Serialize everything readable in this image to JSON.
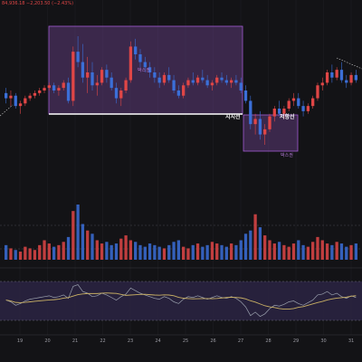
{
  "header": {
    "price_readout": "84,936.18 −2,203.50 (−2.43%)"
  },
  "annotations": {
    "support_label": "지지선",
    "resistance_label": "저항선",
    "box_top_label": "박스권",
    "box_bottom_label": "박스권"
  },
  "colors": {
    "background": "#131316",
    "up": "#e04646",
    "down": "#3b6fd8",
    "box_fill": "#5c3a78",
    "box_stroke": "#a35bd3",
    "rsi_band": "#2a2340",
    "rsi_line": "#9aa0ad",
    "rsi_ma": "#c9b064",
    "divider": "#4a4a4f"
  },
  "x_axis": {
    "day_labels": [
      "19",
      "20",
      "21",
      "22",
      "23",
      "24",
      "25",
      "26",
      "27",
      "28",
      "29",
      "30",
      "31"
    ]
  },
  "chart_data": {
    "type": "candlestick",
    "note_scale": "price axis not printed; values in relative units",
    "candles": [
      [
        100,
        102,
        96,
        98
      ],
      [
        98,
        101,
        95,
        99
      ],
      [
        99,
        100,
        94,
        95
      ],
      [
        95,
        97,
        92,
        96
      ],
      [
        96,
        99,
        95,
        98
      ],
      [
        98,
        100,
        97,
        99
      ],
      [
        99,
        101,
        98,
        100
      ],
      [
        100,
        102,
        99,
        101
      ],
      [
        101,
        103,
        100,
        102
      ],
      [
        102,
        104,
        101,
        103
      ],
      [
        103,
        104,
        100,
        101
      ],
      [
        101,
        103,
        99,
        102
      ],
      [
        102,
        105,
        101,
        104
      ],
      [
        104,
        106,
        96,
        97
      ],
      [
        97,
        118,
        95,
        116
      ],
      [
        116,
        122,
        110,
        112
      ],
      [
        112,
        119,
        104,
        106
      ],
      [
        106,
        114,
        100,
        108
      ],
      [
        108,
        112,
        101,
        103
      ],
      [
        103,
        107,
        99,
        104
      ],
      [
        104,
        110,
        103,
        109
      ],
      [
        109,
        111,
        104,
        106
      ],
      [
        106,
        108,
        101,
        102
      ],
      [
        102,
        104,
        96,
        98
      ],
      [
        98,
        102,
        95,
        101
      ],
      [
        101,
        106,
        100,
        105
      ],
      [
        105,
        120,
        104,
        118
      ],
      [
        118,
        121,
        113,
        115
      ],
      [
        115,
        117,
        110,
        112
      ],
      [
        112,
        114,
        108,
        110
      ],
      [
        110,
        112,
        106,
        108
      ],
      [
        108,
        110,
        104,
        106
      ],
      [
        106,
        108,
        102,
        104
      ],
      [
        104,
        108,
        103,
        107
      ],
      [
        107,
        110,
        104,
        105
      ],
      [
        105,
        107,
        100,
        101
      ],
      [
        101,
        103,
        98,
        99
      ],
      [
        99,
        104,
        98,
        103
      ],
      [
        103,
        106,
        102,
        105
      ],
      [
        105,
        108,
        103,
        104
      ],
      [
        104,
        107,
        103,
        106
      ],
      [
        106,
        109,
        104,
        105
      ],
      [
        105,
        107,
        102,
        103
      ],
      [
        103,
        105,
        101,
        104
      ],
      [
        104,
        107,
        103,
        106
      ],
      [
        106,
        108,
        104,
        105
      ],
      [
        105,
        107,
        103,
        104
      ],
      [
        104,
        106,
        102,
        105
      ],
      [
        105,
        107,
        103,
        104
      ],
      [
        104,
        106,
        100,
        101
      ],
      [
        101,
        103,
        96,
        97
      ],
      [
        97,
        99,
        86,
        88
      ],
      [
        88,
        92,
        84,
        90
      ],
      [
        90,
        93,
        82,
        84
      ],
      [
        84,
        88,
        80,
        86
      ],
      [
        86,
        92,
        85,
        91
      ],
      [
        91,
        95,
        89,
        94
      ],
      [
        94,
        97,
        91,
        92
      ],
      [
        92,
        95,
        90,
        94
      ],
      [
        94,
        98,
        93,
        97
      ],
      [
        97,
        100,
        95,
        98
      ],
      [
        98,
        100,
        94,
        95
      ],
      [
        95,
        97,
        91,
        93
      ],
      [
        93,
        96,
        92,
        95
      ],
      [
        95,
        99,
        94,
        98
      ],
      [
        98,
        104,
        97,
        103
      ],
      [
        103,
        106,
        101,
        104
      ],
      [
        104,
        109,
        103,
        108
      ],
      [
        108,
        111,
        104,
        106
      ],
      [
        106,
        110,
        105,
        109
      ],
      [
        109,
        112,
        104,
        105
      ],
      [
        105,
        107,
        102,
        104
      ],
      [
        104,
        108,
        103,
        107
      ],
      [
        107,
        109,
        104,
        105
      ]
    ],
    "volume": [
      9,
      7,
      6,
      5,
      8,
      7,
      6,
      9,
      12,
      10,
      8,
      9,
      11,
      14,
      30,
      34,
      22,
      18,
      16,
      12,
      10,
      11,
      9,
      10,
      13,
      15,
      12,
      11,
      9,
      8,
      10,
      9,
      8,
      7,
      9,
      11,
      12,
      8,
      7,
      9,
      10,
      8,
      9,
      11,
      10,
      9,
      8,
      10,
      9,
      12,
      16,
      18,
      28,
      20,
      15,
      12,
      10,
      11,
      9,
      8,
      10,
      12,
      9,
      8,
      11,
      14,
      12,
      10,
      9,
      11,
      10,
      8,
      9,
      10
    ],
    "rsi": [
      52,
      50,
      46,
      48,
      51,
      53,
      54,
      55,
      56,
      57,
      55,
      56,
      58,
      54,
      68,
      70,
      62,
      60,
      56,
      57,
      60,
      58,
      55,
      52,
      56,
      59,
      66,
      63,
      60,
      58,
      56,
      54,
      53,
      56,
      54,
      50,
      48,
      53,
      56,
      55,
      57,
      55,
      53,
      55,
      57,
      55,
      54,
      56,
      54,
      50,
      44,
      34,
      38,
      33,
      36,
      42,
      46,
      45,
      47,
      50,
      51,
      48,
      46,
      49,
      52,
      58,
      59,
      62,
      58,
      60,
      56,
      54,
      57,
      55
    ],
    "support_level": 103,
    "resistance_level": 96
  }
}
